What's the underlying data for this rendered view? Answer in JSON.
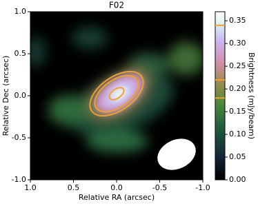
{
  "chart_data": {
    "type": "heatmap",
    "title": "F02",
    "x_label": "Relative RA (arcsec)",
    "y_label": "Relative Dec (arcsec)",
    "colorbar_label": "Brightness (mJy/beam)",
    "xlim": [
      1,
      -1
    ],
    "ylim": [
      -1,
      1
    ],
    "xticks": [
      {
        "value": 1,
        "label": "1.0"
      },
      0.5,
      {
        "value": 0,
        "label": "0.0"
      },
      -0.5,
      {
        "value": -1,
        "label": "-1.0"
      }
    ],
    "yticks": [
      {
        "value": 1,
        "label": "1.0"
      },
      0.5,
      {
        "value": 0,
        "label": "0.0"
      },
      -0.5,
      {
        "value": -1,
        "label": "-1.0"
      }
    ],
    "clim": [
      0,
      0.37
    ],
    "cticks": [
      {
        "value": 0,
        "label": "0.00"
      },
      0.05,
      {
        "value": 0.1,
        "label": "0.10"
      },
      0.15,
      {
        "value": 0.2,
        "label": "0.20"
      },
      0.25,
      {
        "value": 0.3,
        "label": "0.30"
      },
      0.35
    ],
    "contour_levels": [
      0.18,
      0.22,
      0.34
    ],
    "contour_color": "#f0a030"
  }
}
